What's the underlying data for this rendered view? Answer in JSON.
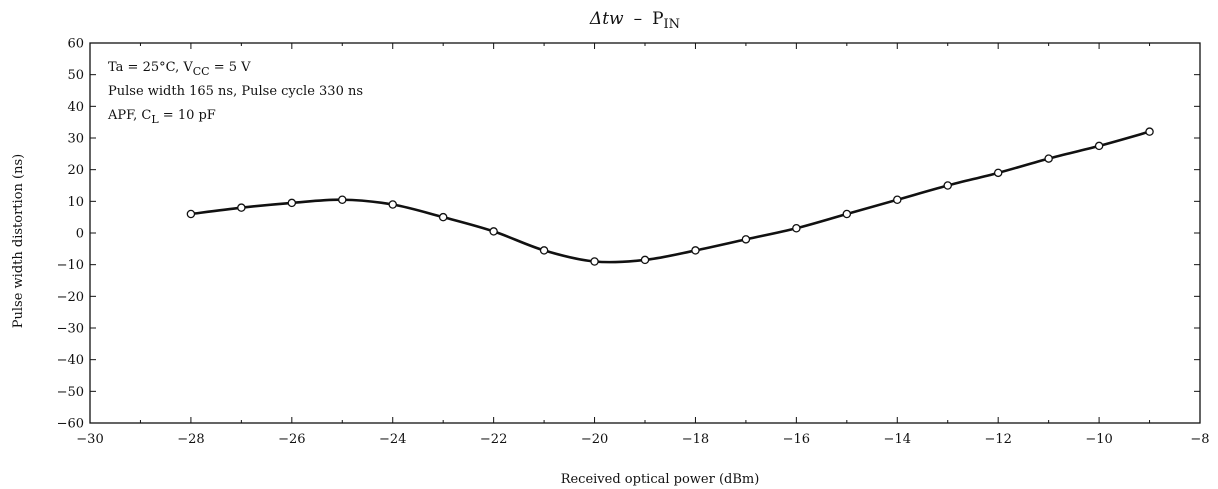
{
  "chart_data": {
    "type": "line",
    "title_main": "Δtw",
    "title_sep": "–",
    "title_var": "P",
    "title_sub": "IN",
    "xlabel": "Received optical power (dBm)",
    "ylabel": "Pulse width distortion (ns)",
    "xlim": [
      -30,
      -8
    ],
    "ylim": [
      -60,
      60
    ],
    "xticks": [
      -30,
      -28,
      -26,
      -24,
      -22,
      -20,
      -18,
      -16,
      -14,
      -12,
      -10,
      -8
    ],
    "xtick_labels": [
      "−30",
      "−28",
      "−26",
      "−24",
      "−22",
      "−20",
      "−18",
      "−16",
      "−14",
      "−12",
      "−10",
      "−8"
    ],
    "yticks": [
      60,
      50,
      40,
      30,
      20,
      10,
      0,
      -10,
      -20,
      -30,
      -40,
      -50,
      -60
    ],
    "ytick_labels": [
      "60",
      "50",
      "40",
      "30",
      "20",
      "10",
      "0",
      "−10",
      "−20",
      "−30",
      "−40",
      "−50",
      "−60"
    ],
    "grid": false,
    "annotations": {
      "line1_a": "Ta = 25°C, V",
      "line1_sub": "CC",
      "line1_b": " = 5 V",
      "line2": "Pulse width 165 ns, Pulse cycle 330 ns",
      "line3_a": "APF, C",
      "line3_sub": "L",
      "line3_b": " = 10 pF"
    },
    "series": [
      {
        "x": [
          -28,
          -27,
          -26,
          -25,
          -24,
          -23,
          -22,
          -21,
          -20,
          -19,
          -18,
          -17,
          -16,
          -15,
          -14,
          -13,
          -12,
          -11,
          -10,
          -9
        ],
        "values": [
          6,
          8,
          9.5,
          10.5,
          9,
          5,
          0.5,
          -5.5,
          -9,
          -8.5,
          -5.5,
          -2,
          1.5,
          6,
          10.5,
          15,
          19,
          23.5,
          27.5,
          32
        ]
      }
    ]
  }
}
